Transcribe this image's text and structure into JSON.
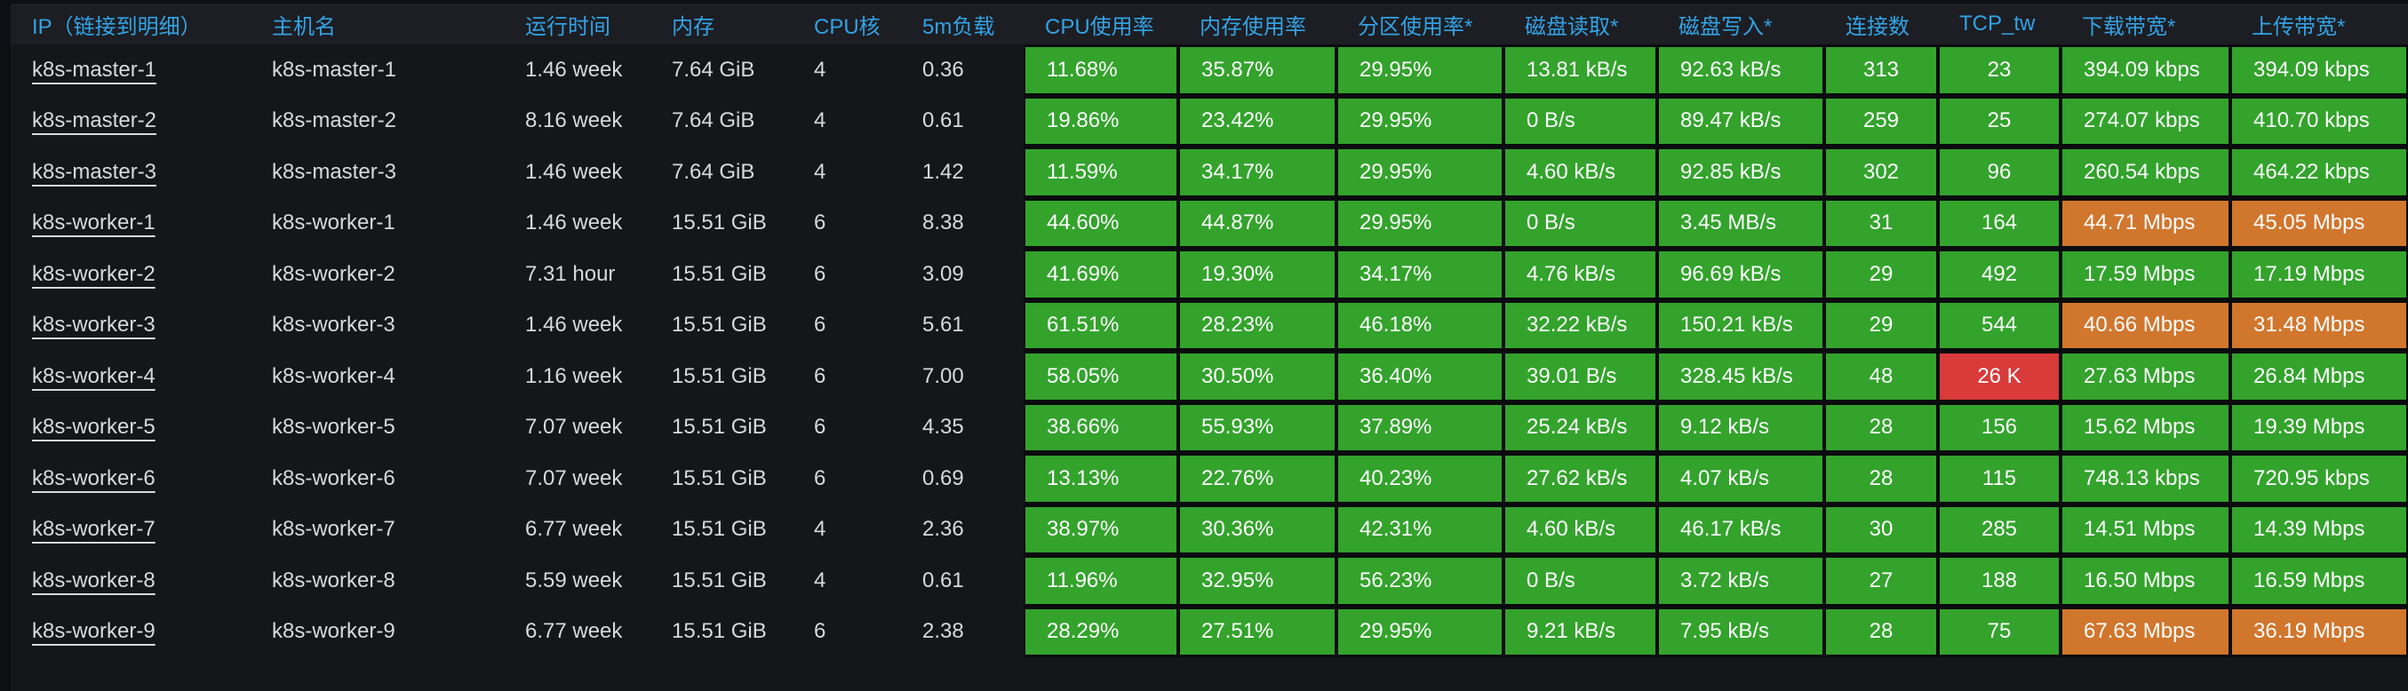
{
  "panel": {
    "type": "table",
    "description": "kubernetes node resource overview table"
  },
  "colors": {
    "ok": "#33a32c",
    "warn": "#d1762d",
    "crit": "#d93a3a",
    "header_link": "#33a2e5",
    "text": "#d8d9da",
    "value_text": "#ffffff",
    "page_bg": "#0e0f13",
    "header_bg": "#1c1e23",
    "row_bg": "#15161a",
    "grid_line": "#0a0b0e"
  },
  "table": {
    "columns": [
      {
        "key": "ip",
        "label": "IP（链接到明细）"
      },
      {
        "key": "hostname",
        "label": "主机名"
      },
      {
        "key": "uptime",
        "label": "运行时间"
      },
      {
        "key": "memory",
        "label": "内存"
      },
      {
        "key": "cpu_cores",
        "label": "CPU核"
      },
      {
        "key": "load_5m",
        "label": "5m负载"
      },
      {
        "key": "cpu_usage",
        "label": "CPU使用率"
      },
      {
        "key": "mem_usage",
        "label": "内存使用率"
      },
      {
        "key": "partition_usage",
        "label": "分区使用率*"
      },
      {
        "key": "disk_read",
        "label": "磁盘读取*"
      },
      {
        "key": "disk_write",
        "label": "磁盘写入*"
      },
      {
        "key": "connections",
        "label": "连接数"
      },
      {
        "key": "tcp_tw",
        "label": "TCP_tw"
      },
      {
        "key": "download_bw",
        "label": "下载带宽*"
      },
      {
        "key": "upload_bw",
        "label": "上传带宽*"
      }
    ],
    "rows": [
      {
        "ip": "k8s-master-1",
        "hostname": "k8s-master-1",
        "uptime": "1.46 week",
        "memory": "7.64 GiB",
        "cpu_cores": "4",
        "load_5m": "0.36",
        "metrics": [
          {
            "v": "11.68%",
            "s": "ok"
          },
          {
            "v": "35.87%",
            "s": "ok"
          },
          {
            "v": "29.95%",
            "s": "ok"
          },
          {
            "v": "13.81 kB/s",
            "s": "ok"
          },
          {
            "v": "92.63 kB/s",
            "s": "ok"
          },
          {
            "v": "313",
            "s": "ok"
          },
          {
            "v": "23",
            "s": "ok"
          },
          {
            "v": "394.09 kbps",
            "s": "ok"
          },
          {
            "v": "394.09 kbps",
            "s": "ok"
          }
        ]
      },
      {
        "ip": "k8s-master-2",
        "hostname": "k8s-master-2",
        "uptime": "8.16 week",
        "memory": "7.64 GiB",
        "cpu_cores": "4",
        "load_5m": "0.61",
        "metrics": [
          {
            "v": "19.86%",
            "s": "ok"
          },
          {
            "v": "23.42%",
            "s": "ok"
          },
          {
            "v": "29.95%",
            "s": "ok"
          },
          {
            "v": "0 B/s",
            "s": "ok"
          },
          {
            "v": "89.47 kB/s",
            "s": "ok"
          },
          {
            "v": "259",
            "s": "ok"
          },
          {
            "v": "25",
            "s": "ok"
          },
          {
            "v": "274.07 kbps",
            "s": "ok"
          },
          {
            "v": "410.70 kbps",
            "s": "ok"
          }
        ]
      },
      {
        "ip": "k8s-master-3",
        "hostname": "k8s-master-3",
        "uptime": "1.46 week",
        "memory": "7.64 GiB",
        "cpu_cores": "4",
        "load_5m": "1.42",
        "metrics": [
          {
            "v": "11.59%",
            "s": "ok"
          },
          {
            "v": "34.17%",
            "s": "ok"
          },
          {
            "v": "29.95%",
            "s": "ok"
          },
          {
            "v": "4.60 kB/s",
            "s": "ok"
          },
          {
            "v": "92.85 kB/s",
            "s": "ok"
          },
          {
            "v": "302",
            "s": "ok"
          },
          {
            "v": "96",
            "s": "ok"
          },
          {
            "v": "260.54 kbps",
            "s": "ok"
          },
          {
            "v": "464.22 kbps",
            "s": "ok"
          }
        ]
      },
      {
        "ip": "k8s-worker-1",
        "hostname": "k8s-worker-1",
        "uptime": "1.46 week",
        "memory": "15.51 GiB",
        "cpu_cores": "6",
        "load_5m": "8.38",
        "metrics": [
          {
            "v": "44.60%",
            "s": "ok"
          },
          {
            "v": "44.87%",
            "s": "ok"
          },
          {
            "v": "29.95%",
            "s": "ok"
          },
          {
            "v": "0 B/s",
            "s": "ok"
          },
          {
            "v": "3.45 MB/s",
            "s": "ok"
          },
          {
            "v": "31",
            "s": "ok"
          },
          {
            "v": "164",
            "s": "ok"
          },
          {
            "v": "44.71 Mbps",
            "s": "warn"
          },
          {
            "v": "45.05 Mbps",
            "s": "warn"
          }
        ]
      },
      {
        "ip": "k8s-worker-2",
        "hostname": "k8s-worker-2",
        "uptime": "7.31 hour",
        "memory": "15.51 GiB",
        "cpu_cores": "6",
        "load_5m": "3.09",
        "metrics": [
          {
            "v": "41.69%",
            "s": "ok"
          },
          {
            "v": "19.30%",
            "s": "ok"
          },
          {
            "v": "34.17%",
            "s": "ok"
          },
          {
            "v": "4.76 kB/s",
            "s": "ok"
          },
          {
            "v": "96.69 kB/s",
            "s": "ok"
          },
          {
            "v": "29",
            "s": "ok"
          },
          {
            "v": "492",
            "s": "ok"
          },
          {
            "v": "17.59 Mbps",
            "s": "ok"
          },
          {
            "v": "17.19 Mbps",
            "s": "ok"
          }
        ]
      },
      {
        "ip": "k8s-worker-3",
        "hostname": "k8s-worker-3",
        "uptime": "1.46 week",
        "memory": "15.51 GiB",
        "cpu_cores": "6",
        "load_5m": "5.61",
        "metrics": [
          {
            "v": "61.51%",
            "s": "ok"
          },
          {
            "v": "28.23%",
            "s": "ok"
          },
          {
            "v": "46.18%",
            "s": "ok"
          },
          {
            "v": "32.22 kB/s",
            "s": "ok"
          },
          {
            "v": "150.21 kB/s",
            "s": "ok"
          },
          {
            "v": "29",
            "s": "ok"
          },
          {
            "v": "544",
            "s": "ok"
          },
          {
            "v": "40.66 Mbps",
            "s": "warn"
          },
          {
            "v": "31.48 Mbps",
            "s": "warn"
          }
        ]
      },
      {
        "ip": "k8s-worker-4",
        "hostname": "k8s-worker-4",
        "uptime": "1.16 week",
        "memory": "15.51 GiB",
        "cpu_cores": "6",
        "load_5m": "7.00",
        "metrics": [
          {
            "v": "58.05%",
            "s": "ok"
          },
          {
            "v": "30.50%",
            "s": "ok"
          },
          {
            "v": "36.40%",
            "s": "ok"
          },
          {
            "v": "39.01 B/s",
            "s": "ok"
          },
          {
            "v": "328.45 kB/s",
            "s": "ok"
          },
          {
            "v": "48",
            "s": "ok"
          },
          {
            "v": "26 K",
            "s": "crit"
          },
          {
            "v": "27.63 Mbps",
            "s": "ok"
          },
          {
            "v": "26.84 Mbps",
            "s": "ok"
          }
        ]
      },
      {
        "ip": "k8s-worker-5",
        "hostname": "k8s-worker-5",
        "uptime": "7.07 week",
        "memory": "15.51 GiB",
        "cpu_cores": "6",
        "load_5m": "4.35",
        "metrics": [
          {
            "v": "38.66%",
            "s": "ok"
          },
          {
            "v": "55.93%",
            "s": "ok"
          },
          {
            "v": "37.89%",
            "s": "ok"
          },
          {
            "v": "25.24 kB/s",
            "s": "ok"
          },
          {
            "v": "9.12 kB/s",
            "s": "ok"
          },
          {
            "v": "28",
            "s": "ok"
          },
          {
            "v": "156",
            "s": "ok"
          },
          {
            "v": "15.62 Mbps",
            "s": "ok"
          },
          {
            "v": "19.39 Mbps",
            "s": "ok"
          }
        ]
      },
      {
        "ip": "k8s-worker-6",
        "hostname": "k8s-worker-6",
        "uptime": "7.07 week",
        "memory": "15.51 GiB",
        "cpu_cores": "6",
        "load_5m": "0.69",
        "metrics": [
          {
            "v": "13.13%",
            "s": "ok"
          },
          {
            "v": "22.76%",
            "s": "ok"
          },
          {
            "v": "40.23%",
            "s": "ok"
          },
          {
            "v": "27.62 kB/s",
            "s": "ok"
          },
          {
            "v": "4.07 kB/s",
            "s": "ok"
          },
          {
            "v": "28",
            "s": "ok"
          },
          {
            "v": "115",
            "s": "ok"
          },
          {
            "v": "748.13 kbps",
            "s": "ok"
          },
          {
            "v": "720.95 kbps",
            "s": "ok"
          }
        ]
      },
      {
        "ip": "k8s-worker-7",
        "hostname": "k8s-worker-7",
        "uptime": "6.77 week",
        "memory": "15.51 GiB",
        "cpu_cores": "4",
        "load_5m": "2.36",
        "metrics": [
          {
            "v": "38.97%",
            "s": "ok"
          },
          {
            "v": "30.36%",
            "s": "ok"
          },
          {
            "v": "42.31%",
            "s": "ok"
          },
          {
            "v": "4.60 kB/s",
            "s": "ok"
          },
          {
            "v": "46.17 kB/s",
            "s": "ok"
          },
          {
            "v": "30",
            "s": "ok"
          },
          {
            "v": "285",
            "s": "ok"
          },
          {
            "v": "14.51 Mbps",
            "s": "ok"
          },
          {
            "v": "14.39 Mbps",
            "s": "ok"
          }
        ]
      },
      {
        "ip": "k8s-worker-8",
        "hostname": "k8s-worker-8",
        "uptime": "5.59 week",
        "memory": "15.51 GiB",
        "cpu_cores": "4",
        "load_5m": "0.61",
        "metrics": [
          {
            "v": "11.96%",
            "s": "ok"
          },
          {
            "v": "32.95%",
            "s": "ok"
          },
          {
            "v": "56.23%",
            "s": "ok"
          },
          {
            "v": "0 B/s",
            "s": "ok"
          },
          {
            "v": "3.72 kB/s",
            "s": "ok"
          },
          {
            "v": "27",
            "s": "ok"
          },
          {
            "v": "188",
            "s": "ok"
          },
          {
            "v": "16.50 Mbps",
            "s": "ok"
          },
          {
            "v": "16.59 Mbps",
            "s": "ok"
          }
        ]
      },
      {
        "ip": "k8s-worker-9",
        "hostname": "k8s-worker-9",
        "uptime": "6.77 week",
        "memory": "15.51 GiB",
        "cpu_cores": "6",
        "load_5m": "2.38",
        "metrics": [
          {
            "v": "28.29%",
            "s": "ok"
          },
          {
            "v": "27.51%",
            "s": "ok"
          },
          {
            "v": "29.95%",
            "s": "ok"
          },
          {
            "v": "9.21 kB/s",
            "s": "ok"
          },
          {
            "v": "7.95 kB/s",
            "s": "ok"
          },
          {
            "v": "28",
            "s": "ok"
          },
          {
            "v": "75",
            "s": "ok"
          },
          {
            "v": "67.63 Mbps",
            "s": "warn"
          },
          {
            "v": "36.19 Mbps",
            "s": "warn"
          }
        ]
      }
    ]
  }
}
